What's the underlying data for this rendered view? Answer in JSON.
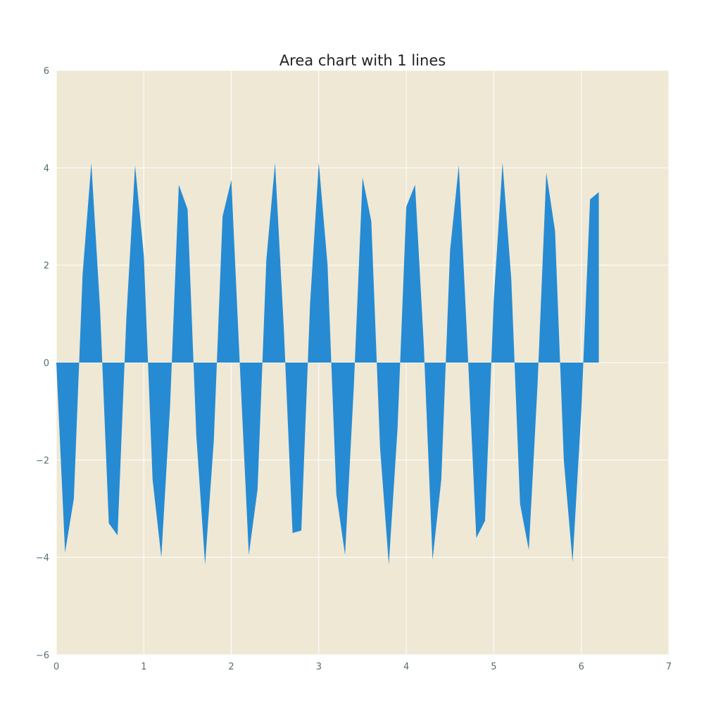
{
  "chart_data": {
    "type": "area",
    "title": "Area chart with 1 lines",
    "xlabel": "",
    "ylabel": "",
    "xlim": [
      0,
      7
    ],
    "ylim": [
      -6,
      6
    ],
    "x_ticks": [
      0,
      1,
      2,
      3,
      4,
      5,
      6,
      7
    ],
    "y_ticks": [
      -6,
      -4,
      -2,
      0,
      2,
      4,
      6
    ],
    "x_tick_labels": [
      "0",
      "1",
      "2",
      "3",
      "4",
      "5",
      "6",
      "7"
    ],
    "y_tick_labels": [
      "−6",
      "−4",
      "−2",
      "0",
      "2",
      "4",
      "6"
    ],
    "grid": true,
    "legend": "none",
    "colors": {
      "background": "#eee8d5",
      "fill": "#268bd2",
      "grid": "#ffffff",
      "tick_text": "#586e75",
      "title_text": "#222222"
    },
    "x": [
      0.0,
      0.1,
      0.2,
      0.3,
      0.4,
      0.5,
      0.6,
      0.7,
      0.8,
      0.9,
      1.0,
      1.1,
      1.2,
      1.3,
      1.4,
      1.5,
      1.6,
      1.7,
      1.8,
      1.9,
      2.0,
      2.1,
      2.2,
      2.3,
      2.4,
      2.5,
      2.6,
      2.7,
      2.8,
      2.9,
      3.0,
      3.1,
      3.2,
      3.3,
      3.4,
      3.5,
      3.6,
      3.7,
      3.8,
      3.9,
      4.0,
      4.1,
      4.2,
      4.3,
      4.4,
      4.5,
      4.6,
      4.7,
      4.8,
      4.9,
      5.0,
      5.1,
      5.2,
      5.3,
      5.4,
      5.5,
      5.6,
      5.7,
      5.8,
      5.9,
      6.0,
      6.1,
      6.2
    ],
    "series": [
      {
        "values": [
          0.0,
          -3.9,
          -2.8,
          1.8,
          4.1,
          1.1,
          -3.3,
          -3.55,
          0.9,
          4.05,
          2.2,
          -2.4,
          -4.0,
          -0.9,
          3.65,
          3.15,
          -1.5,
          -4.15,
          -1.6,
          3.0,
          3.75,
          -0.15,
          -3.95,
          -2.6,
          2.1,
          4.1,
          0.7,
          -3.5,
          -3.45,
          1.2,
          4.1,
          2.0,
          -2.7,
          -3.95,
          -0.5,
          3.8,
          2.9,
          -1.75,
          -4.15,
          -1.35,
          3.2,
          3.65,
          0.35,
          -4.05,
          -2.4,
          2.3,
          4.05,
          0.3,
          -3.6,
          -3.25,
          1.3,
          4.1,
          1.7,
          -2.9,
          -3.85,
          -0.45,
          3.9,
          2.7,
          -2.0,
          -4.1,
          -1.0,
          3.35,
          3.5
        ]
      }
    ]
  }
}
